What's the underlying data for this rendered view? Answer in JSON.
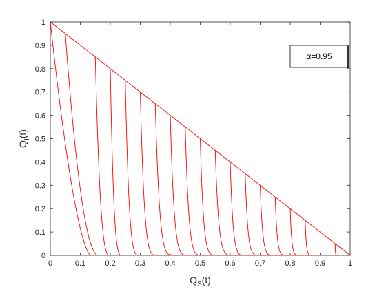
{
  "chart_data": {
    "type": "line",
    "xlabel": "Q",
    "xlabel_sub": "S",
    "xlabel_suffix": "(t)",
    "ylabel": "Q",
    "ylabel_sub": "I",
    "ylabel_suffix": "(t)",
    "xlim": [
      0,
      1
    ],
    "ylim": [
      0,
      1
    ],
    "xticks": [
      0,
      0.1,
      0.2,
      0.3,
      0.4,
      0.5,
      0.6,
      0.7,
      0.8,
      0.9,
      1
    ],
    "yticks": [
      0,
      0.1,
      0.2,
      0.3,
      0.4,
      0.5,
      0.6,
      0.7,
      0.8,
      0.9,
      1
    ],
    "xtick_labels": [
      "0",
      "0.1",
      "0.2",
      "0.3",
      "0.4",
      "0.5",
      "0.6",
      "0.7",
      "0.8",
      "0.9",
      "1"
    ],
    "ytick_labels": [
      "0",
      "0.1",
      "0.2",
      "0.3",
      "0.4",
      "0.5",
      "0.6",
      "0.7",
      "0.8",
      "0.9",
      "1"
    ],
    "grid": false,
    "legend_position": "top-right",
    "annotation": "α=0.95",
    "line_color": "#ff0000",
    "boundary_line": {
      "x": [
        0,
        1
      ],
      "y": [
        1,
        0
      ]
    },
    "trajectory_starts_s0": [
      0,
      0.05,
      0.15,
      0.2,
      0.25,
      0.3,
      0.35,
      0.4,
      0.45,
      0.5,
      0.55,
      0.6,
      0.65,
      0.7,
      0.75,
      0.8,
      0.85,
      0.95
    ],
    "trajectory_end_s": [
      0.135,
      0.16,
      0.2,
      0.24,
      0.3,
      0.36,
      0.42,
      0.47,
      0.52,
      0.57,
      0.63,
      0.67,
      0.72,
      0.77,
      0.81,
      0.85,
      0.89,
      0.96
    ],
    "trajectory_shape_exponent": [
      1.6,
      2.0,
      3.0,
      3.5,
      4.0,
      4.5,
      5.0,
      5.5,
      6.0,
      6.5,
      7.0,
      7.5,
      8.0,
      8.5,
      9.0,
      9.5,
      10.0,
      10.0
    ]
  }
}
